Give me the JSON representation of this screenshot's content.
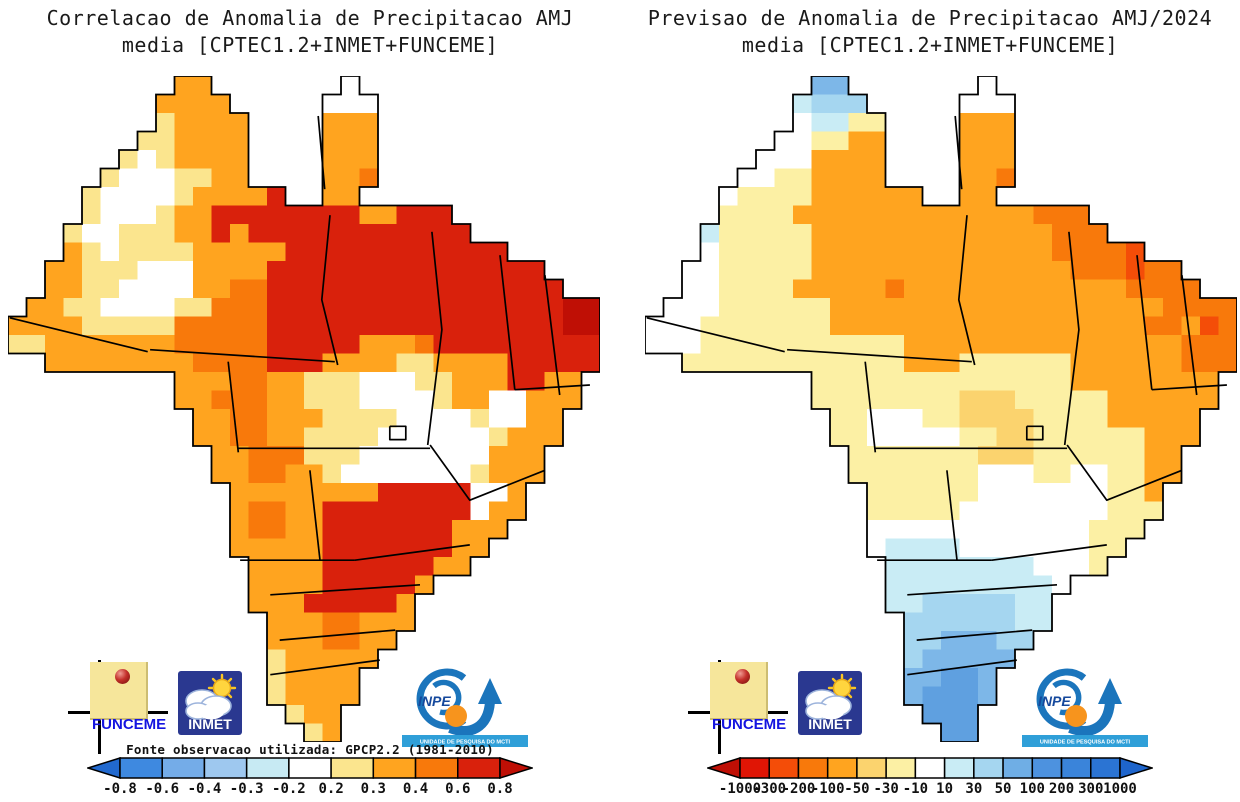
{
  "panels": [
    {
      "title_line1": "Correlacao de Anomalia de Precipitacao AMJ",
      "title_line2": "media [CPTEC1.2+INMET+FUNCEME]",
      "source_note": "Fonte observacao utilizada: GPCP2.2 (1981-2010)",
      "colorbar": {
        "arrow_left": "#2169cf",
        "segments": [
          "#3e89e0",
          "#74ace8",
          "#9ec8ef",
          "#c7eaf3",
          "#ffffff",
          "#fbe58e",
          "#ffa41f",
          "#f8790b",
          "#d9210c"
        ],
        "arrow_right": "#bf0f05",
        "tick_labels": [
          "-0.8",
          "-0.6",
          "-0.4",
          "-0.3",
          "-0.2",
          "0.2",
          "0.3",
          "0.4",
          "0.6",
          "0.8"
        ]
      },
      "map": {
        "palette": {
          "W": "#ffffff",
          "Y": "#fbe58e",
          "O": "#ffa41f",
          "D": "#f8790b",
          "R": "#d9210c",
          "K": "#bf0f05"
        },
        "grid": [
          ".........OO.......W.............",
          "........OOOO.....WWW............",
          "........YOOOO....OOO............",
          ".......YYOOOO....OOO............",
          "......YWYOOOO....OOO............",
          ".....YWWWYYOO....OOD............",
          "....YWWWWYOOOOR..OO.............",
          "....YWWWYOORRRRRRRROORRR........",
          "...YWWYYYOORORRRRRRRRRRRR.......",
          "...OYWYYYYOOOOORRRRRRRRRRRR.....",
          "..OOYYYWWWOOOORRRRRRRRRRRRRRR...",
          "..OOYYWWWWOODDRRRRRRRRRRRRRRRR..",
          ".OOYYWWWWYYDDDRRRRRRRRRRRRRRRRKK",
          "OOOOYYYYYDDDDDRRRRRRRRRRRRRRRRKK",
          "YYOOOOOOODDDDDRRRRROOODRRRRRRRRR",
          "..OOOOOOOODDDDRRROOOOYYOOOORRRRR",
          ".........OOODDOOYYYWWWYYOOORROO.",
          ".........OODDDOOYYYWWWWYOOWWOOO.",
          "..........OODDOOOYYYYWWWWYWWOO..",
          "..........OODDOOYYYYWWWWWWYOOO..",
          "...........OODDDYYYWWWWWWWOOO...",
          "...........OODDOOYWWWWWWWYOOO...",
          "............OOOOOOOORRRRRWWO....",
          "............ODDOORRRRRRRRWOO....",
          "............ODDOORRRRRRROOO.....",
          "............OOOOORRRRRRROO......",
          ".............OOOORRRRRROO.......",
          ".............OOOORRRRRO.........",
          ".............OOORRRRRO..........",
          "..............OOODDOOO..........",
          "..............OOODDOO...........",
          "..............YOOOOO............",
          "..............YOOOO.............",
          "..............YOOOO.............",
          "...............YOO..............",
          "................YO.............."
        ]
      }
    },
    {
      "title_line1": "Previsao de Anomalia de Precipitacao AMJ/2024",
      "title_line2": "media [CPTEC1.2+INMET+FUNCEME]",
      "source_note": "",
      "colorbar": {
        "arrow_left": "#bf0f05",
        "segments": [
          "#e01505",
          "#f44d08",
          "#f8790b",
          "#ffa41f",
          "#fbd36e",
          "#fcf0a4",
          "#ffffff",
          "#c9ecf5",
          "#a5d6f0",
          "#6faee5",
          "#4d92df",
          "#3a84da",
          "#2b74d3"
        ],
        "arrow_right": "#1e65cc",
        "tick_labels": [
          "-1000",
          "-300",
          "-200",
          "-100",
          "-50",
          "-30",
          "-10",
          "10",
          "30",
          "50",
          "100",
          "200",
          "300",
          "1000"
        ]
      },
      "map": {
        "palette": {
          "W": "#ffffff",
          "Y": "#fcf0a4",
          "P": "#fbd36e",
          "O": "#ffa41f",
          "D": "#f8790b",
          "V": "#f44d08",
          "C": "#c9ecf5",
          "L": "#a5d6f0",
          "M": "#7db7e8",
          "B": "#5fa0e0"
        },
        "grid": [
          ".........MM.......W.............",
          "........CLLL.....WWW............",
          "........WCCYY....OOO............",
          ".......WWYYOO....OOO............",
          "......WWWOOOO....OOO............",
          ".....WWYYOOOO....OOD............",
          "....WYYYYOOOOOO..OO.............",
          "....YYYYOOOOOOOOOOOOODDD........",
          "...CYYYYYOOOOOOOOOOOOODDD.......",
          "...WYYYYYOOOOOOOOOOOOODDDDV.....",
          "..WWYYYYYOOOOOOOOOOOOOODDDVDD...",
          "..WWYYYYOOOOODOOOOOOOOOOOODDDD..",
          ".WWWYYYYYYOOOOOOOOOOOOOOOOOODDDD",
          "WWWYYYYYYYOOOOOOOOOOOOOOOOODDOVD",
          "WWWYYYYYYYYYYYOOOOOOOOOOOOOOODDD",
          "..YYYYYYYYYYYYOOOYYYYYYOOOOOODDD",
          ".........YYYYYYYYYYYYYYOOOOOOOO.",
          ".........YYYYYYYYPPPYYYYYOOOOOO.",
          "..........YYWWWYYPPPPYYYYOOOOO..",
          "..........YYWWWWWYYPPYYYYYYOOO..",
          "...........YYYYYYYPPPYYYYYYOO...",
          "...........YYYYYYYWWWYYWWYYOO...",
          "............YYYYYYWWWWWWWYYO....",
          "............YYYYYWWWWWWWWYYY....",
          "............WWWWWWWWWWWWYYY.....",
          "............WCCCCWWWWWWWYY......",
          ".............CCCCCCCCWWWY.......",
          ".............CCCCCCCCCW.........",
          ".............CCLLLLLCC..........",
          "..............LLLLLLCC..........",
          "..............LLMMMLL...........",
          "..............LMMMMM............",
          "..............MMBBM.............",
          "..............MBBBM.............",
          "...............BBB..............",
          "................BB.............."
        ]
      }
    }
  ],
  "logos": {
    "funceme": {
      "label": "FUNCEME"
    },
    "inmet": {
      "label": "INMET"
    },
    "inpe": {
      "label": "INPE",
      "sublabel": "UNIDADE DE PESQUISA DO MCTI"
    }
  },
  "state_borders": [
    [
      [
        52.4,
        6.0
      ],
      [
        53.5,
        17.0
      ]
    ],
    [
      [
        54.4,
        20.9
      ],
      [
        53.0,
        33.6
      ],
      [
        55.7,
        43.4
      ]
    ],
    [
      [
        24.0,
        41.1
      ],
      [
        55.2,
        42.9
      ]
    ],
    [
      [
        0.3,
        36.3
      ],
      [
        23.6,
        41.4
      ]
    ],
    [
      [
        37.2,
        42.9
      ],
      [
        38.9,
        56.5
      ]
    ],
    [
      [
        38.9,
        55.9
      ],
      [
        71.3,
        55.9
      ]
    ],
    [
      [
        71.6,
        23.4
      ],
      [
        73.3,
        38.1
      ],
      [
        70.9,
        55.4
      ]
    ],
    [
      [
        83.1,
        26.9
      ],
      [
        85.6,
        47.1
      ]
    ],
    [
      [
        90.7,
        29.9
      ],
      [
        93.2,
        47.9
      ]
    ],
    [
      [
        85.6,
        47.1
      ],
      [
        98.3,
        46.4
      ]
    ],
    [
      [
        71.3,
        55.4
      ],
      [
        78.0,
        63.7
      ],
      [
        90.7,
        59.2
      ]
    ],
    [
      [
        58.6,
        72.7
      ],
      [
        78.0,
        70.4
      ]
    ],
    [
      [
        51.0,
        59.2
      ],
      [
        52.7,
        72.7
      ]
    ],
    [
      [
        39.2,
        72.7
      ],
      [
        58.6,
        72.7
      ]
    ],
    [
      [
        44.3,
        77.9
      ],
      [
        69.6,
        76.4
      ]
    ],
    [
      [
        45.9,
        84.7
      ],
      [
        65.4,
        83.2
      ]
    ],
    [
      [
        44.3,
        89.9
      ],
      [
        62.8,
        87.7
      ]
    ],
    [
      [
        64.5,
        52.6
      ],
      [
        67.2,
        52.6
      ],
      [
        67.2,
        54.6
      ],
      [
        64.5,
        54.6
      ],
      [
        64.5,
        52.6
      ]
    ]
  ]
}
